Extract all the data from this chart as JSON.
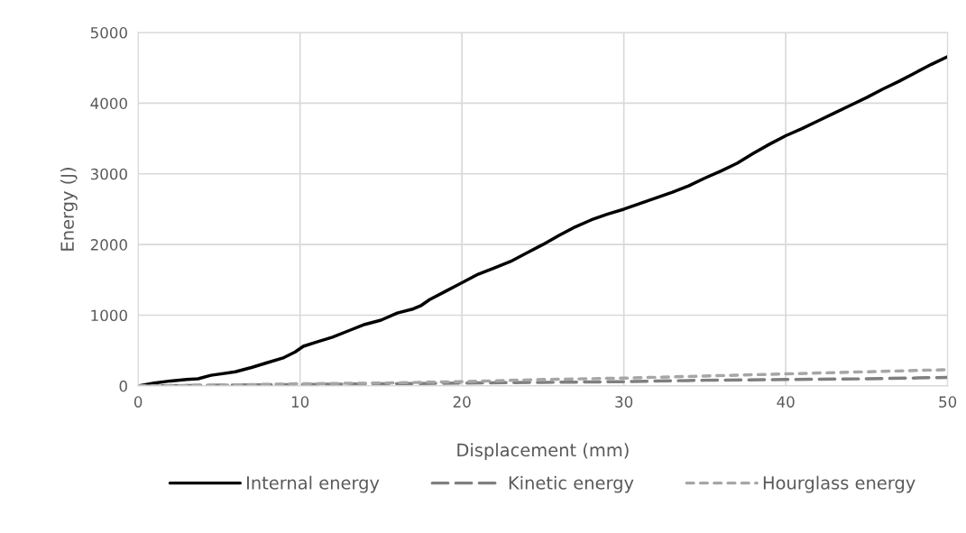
{
  "chart_data": {
    "type": "line",
    "xlabel": "Displacement (mm)",
    "ylabel": "Energy (J)",
    "xlim": [
      0,
      50
    ],
    "xticks": [
      0,
      10,
      20,
      30,
      40,
      50
    ],
    "ylim": [
      0,
      5000
    ],
    "yticks": [
      0,
      1000,
      2000,
      3000,
      4000,
      5000
    ],
    "grid": true,
    "legend": "bottom",
    "series": [
      {
        "name": "Internal energy",
        "color": "#000000",
        "line_style": "solid",
        "x": [
          0,
          1,
          2,
          3,
          3.7,
          4.5,
          6,
          7,
          8,
          9,
          9.7,
          10.2,
          11,
          12,
          13,
          14,
          15,
          16,
          17,
          17.5,
          18,
          19,
          20,
          21,
          22,
          23,
          24,
          25,
          26,
          27,
          28,
          29,
          30,
          31,
          32,
          33,
          34,
          35,
          36,
          37,
          38,
          39,
          40,
          41,
          42,
          43,
          44,
          45,
          46,
          47,
          48,
          49,
          50
        ],
        "values": [
          0,
          40,
          70,
          90,
          100,
          150,
          200,
          260,
          330,
          400,
          480,
          560,
          620,
          690,
          780,
          870,
          930,
          1030,
          1090,
          1140,
          1220,
          1340,
          1460,
          1580,
          1670,
          1760,
          1880,
          2000,
          2130,
          2250,
          2350,
          2430,
          2500,
          2580,
          2660,
          2740,
          2830,
          2940,
          3040,
          3150,
          3290,
          3420,
          3540,
          3640,
          3750,
          3860,
          3970,
          4080,
          4200,
          4310,
          4430,
          4550,
          4660
        ]
      },
      {
        "name": "Kinetic energy",
        "color": "#7f7f7f",
        "line_style": "dashed",
        "x": [
          0,
          5,
          10,
          15,
          20,
          25,
          30,
          35,
          40,
          45,
          50
        ],
        "values": [
          0,
          10,
          20,
          30,
          40,
          50,
          60,
          80,
          90,
          100,
          120
        ]
      },
      {
        "name": "Hourglass energy",
        "color": "#a6a6a6",
        "line_style": "dotted",
        "x": [
          0,
          5,
          10,
          15,
          20,
          25,
          30,
          35,
          40,
          45,
          50
        ],
        "values": [
          0,
          10,
          30,
          40,
          60,
          90,
          110,
          140,
          170,
          200,
          230
        ]
      }
    ]
  }
}
